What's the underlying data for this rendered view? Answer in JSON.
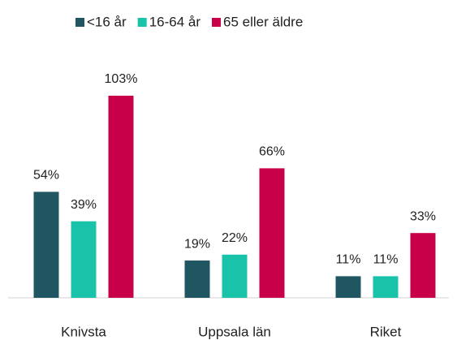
{
  "chart_data": {
    "type": "bar",
    "categories": [
      "Knivsta",
      "Uppsala län",
      "Riket"
    ],
    "series": [
      {
        "name": "<16 år",
        "color": "#1f5661",
        "values": [
          54,
          19,
          11
        ],
        "value_labels": [
          "54%",
          "19%",
          "11%"
        ]
      },
      {
        "name": "16-64 år",
        "color": "#19c3a9",
        "values": [
          39,
          22,
          11
        ],
        "value_labels": [
          "39%",
          "22%",
          "11%"
        ]
      },
      {
        "name": "65 eller äldre",
        "color": "#c8004a",
        "values": [
          103,
          66,
          33
        ],
        "value_labels": [
          "103%",
          "66%",
          "33%"
        ]
      }
    ],
    "ylim": [
      0,
      110
    ],
    "legend": "top"
  }
}
